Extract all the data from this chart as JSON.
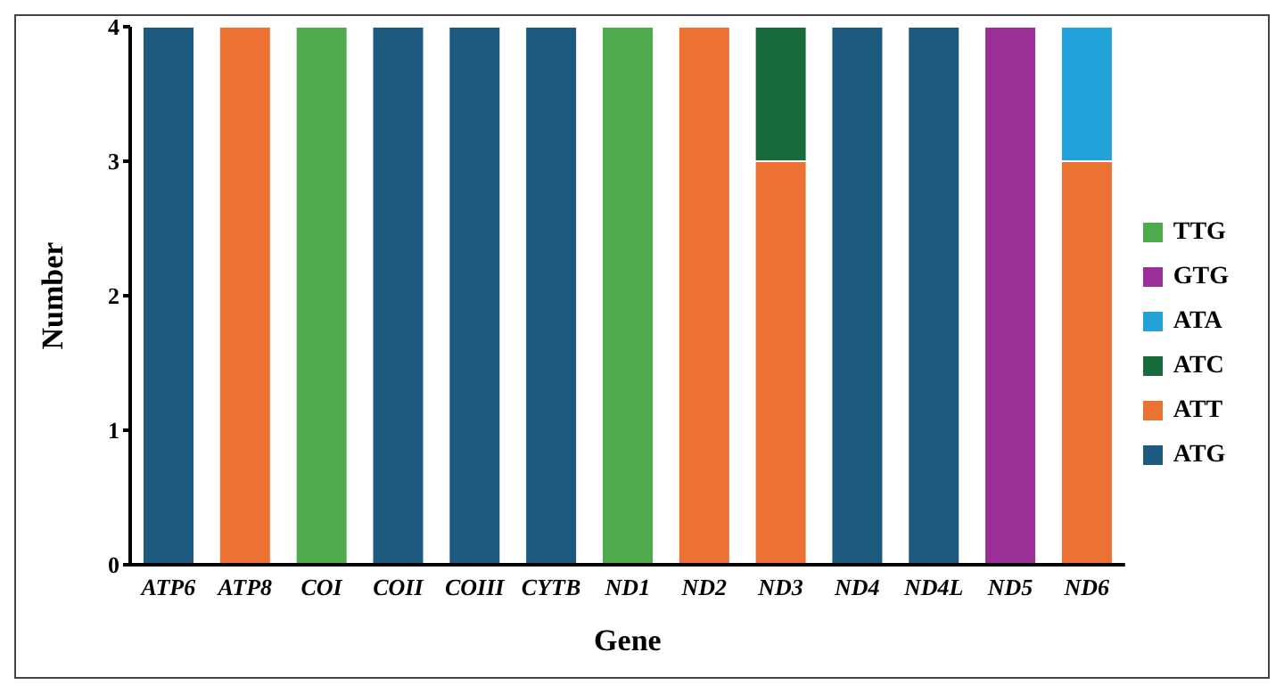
{
  "chart_data": {
    "type": "bar",
    "stacked": true,
    "xlabel": "Gene",
    "ylabel": "Number",
    "categories": [
      "ATP6",
      "ATP8",
      "COI",
      "COII",
      "COIII",
      "CYTB",
      "ND1",
      "ND2",
      "ND3",
      "ND4",
      "ND4L",
      "ND5",
      "ND6"
    ],
    "series": [
      {
        "name": "ATG",
        "color": "#1c5b7f",
        "values": [
          4,
          0,
          0,
          4,
          4,
          4,
          0,
          0,
          0,
          4,
          4,
          0,
          0
        ]
      },
      {
        "name": "ATT",
        "color": "#ec7234",
        "values": [
          0,
          4,
          0,
          0,
          0,
          0,
          0,
          4,
          3,
          0,
          0,
          0,
          3
        ]
      },
      {
        "name": "ATC",
        "color": "#1a6b3b",
        "values": [
          0,
          0,
          0,
          0,
          0,
          0,
          0,
          0,
          1,
          0,
          0,
          0,
          0
        ]
      },
      {
        "name": "ATA",
        "color": "#23a1d9",
        "values": [
          0,
          0,
          0,
          0,
          0,
          0,
          0,
          0,
          0,
          0,
          0,
          0,
          1
        ]
      },
      {
        "name": "GTG",
        "color": "#9a2f97",
        "values": [
          0,
          0,
          0,
          0,
          0,
          0,
          0,
          0,
          0,
          0,
          0,
          4,
          0
        ]
      },
      {
        "name": "TTG",
        "color": "#4eaa4c",
        "values": [
          0,
          0,
          4,
          0,
          0,
          0,
          4,
          0,
          0,
          0,
          0,
          0,
          0
        ]
      }
    ],
    "ylim": [
      0,
      4
    ],
    "yticks": [
      0,
      1,
      2,
      3,
      4
    ],
    "grid": false,
    "legend": "right"
  }
}
